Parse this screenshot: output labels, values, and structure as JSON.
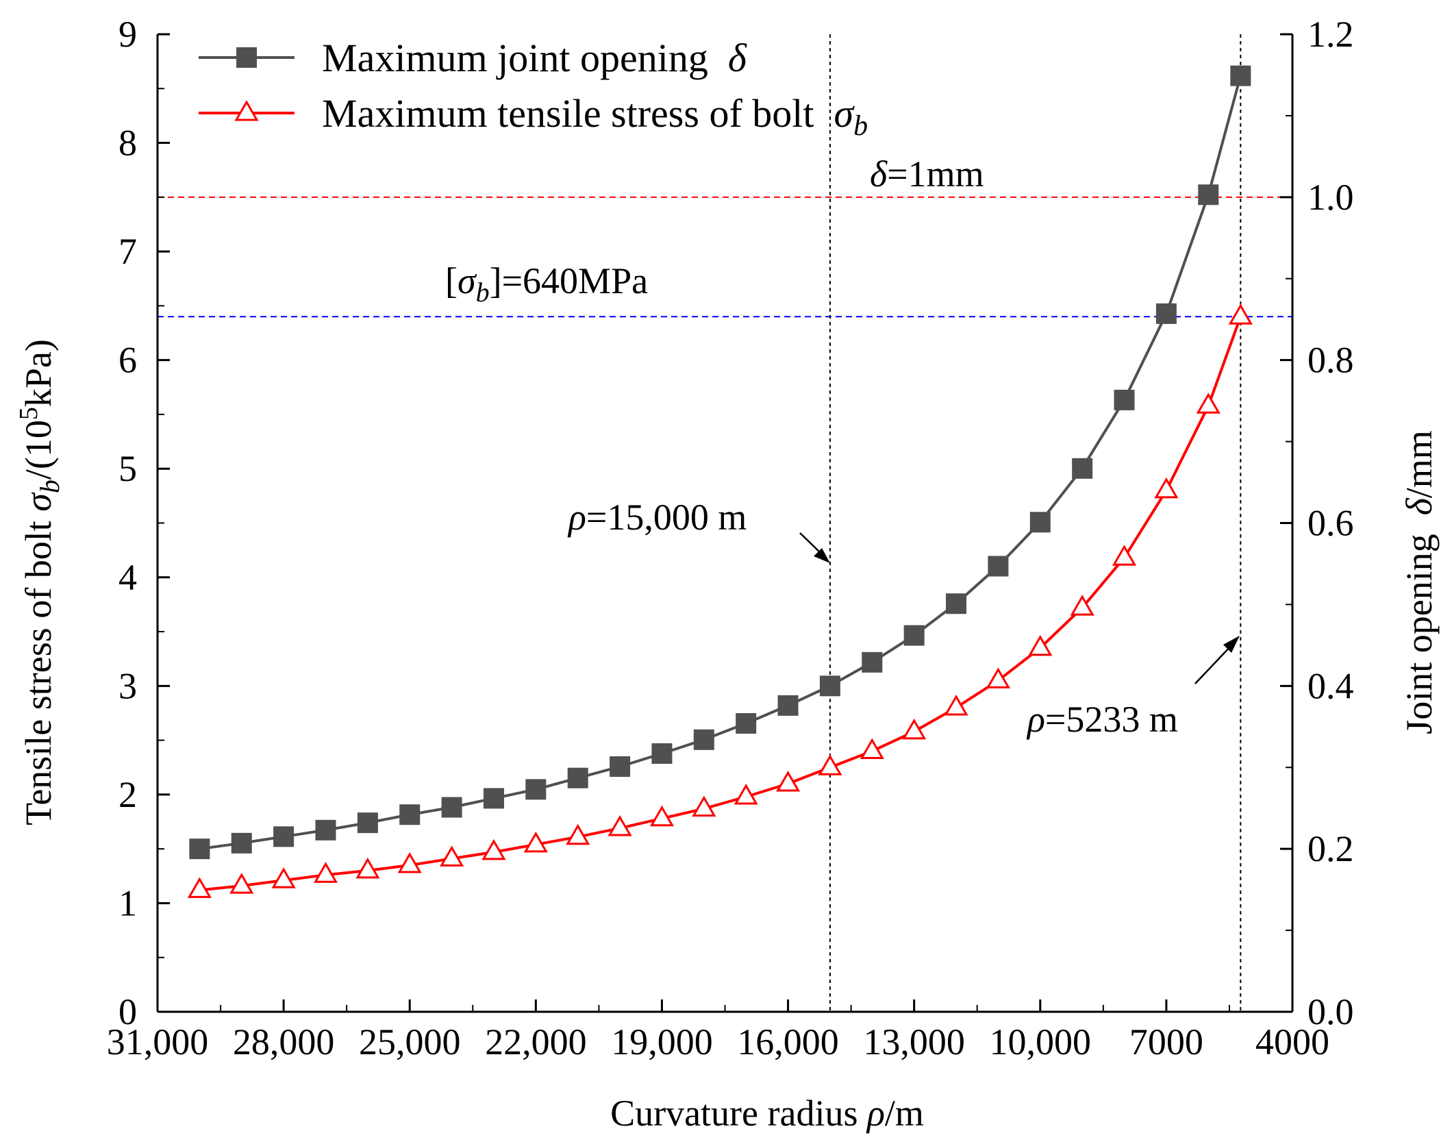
{
  "chart_data": {
    "type": "line",
    "x_axis": {
      "label_prefix": "Curvature radius ",
      "label_symbol": "ρ",
      "label_suffix": "/m",
      "range": [
        31000,
        4000
      ],
      "reversed": true,
      "ticks": [
        31000,
        28000,
        25000,
        22000,
        19000,
        16000,
        13000,
        10000,
        7000,
        4000
      ],
      "tick_labels": [
        "31,000",
        "28,000",
        "25,000",
        "22,000",
        "19,000",
        "16,000",
        "13,000",
        "10,000",
        "7000",
        "4000"
      ]
    },
    "y_left": {
      "label_prefix": "Tensile stress of bolt ",
      "label_symbol": "σ",
      "label_sub": "b",
      "label_mid": "/(10",
      "label_sup": "5",
      "label_suffix": "kPa)",
      "range": [
        0,
        9
      ],
      "ticks": [
        "0",
        "1",
        "2",
        "3",
        "4",
        "5",
        "6",
        "7",
        "8",
        "9"
      ]
    },
    "y_right": {
      "label_prefix": "Joint opening  ",
      "label_symbol": "δ",
      "label_suffix": "/mm",
      "range": [
        0,
        1.2
      ],
      "ticks": [
        "0.0",
        "0.2",
        "0.4",
        "0.6",
        "0.8",
        "1.0",
        "1.2"
      ]
    },
    "x": [
      30000,
      29000,
      28000,
      27000,
      26000,
      25000,
      24000,
      23000,
      22000,
      21000,
      20000,
      19000,
      18000,
      17000,
      16000,
      15000,
      14000,
      13000,
      12000,
      11000,
      10000,
      9000,
      8000,
      7000,
      6000,
      5233
    ],
    "series": [
      {
        "name_text": "Maximum joint opening  ",
        "name_symbol": "δ",
        "name_sub": "",
        "axis": "right",
        "color": "#505050",
        "marker": "square",
        "values": [
          0.2,
          0.207,
          0.215,
          0.223,
          0.232,
          0.242,
          0.251,
          0.262,
          0.273,
          0.287,
          0.301,
          0.317,
          0.334,
          0.354,
          0.376,
          0.4,
          0.429,
          0.462,
          0.501,
          0.547,
          0.601,
          0.667,
          0.751,
          0.857,
          1.003,
          1.149
        ]
      },
      {
        "name_text": "Maximum tensile stress of bolt  ",
        "name_symbol": "σ",
        "name_sub": "b",
        "axis": "left",
        "color": "#ff0000",
        "marker": "triangle-open",
        "values": [
          1.12,
          1.16,
          1.21,
          1.26,
          1.3,
          1.35,
          1.41,
          1.47,
          1.54,
          1.61,
          1.69,
          1.78,
          1.87,
          1.98,
          2.1,
          2.25,
          2.4,
          2.58,
          2.8,
          3.05,
          3.35,
          3.72,
          4.18,
          4.8,
          5.58,
          6.4
        ]
      }
    ],
    "reference_lines": [
      {
        "orientation": "horizontal",
        "axis": "right",
        "value": 1.0,
        "color": "#ff0000",
        "style": "dashed",
        "label_symbol": "δ",
        "label_text": "=1mm"
      },
      {
        "orientation": "horizontal",
        "axis": "left",
        "value": 6.4,
        "color": "#0000ff",
        "style": "dashed",
        "label_open": "[",
        "label_symbol": "σ",
        "label_sub": "b",
        "label_text": "]=640MPa"
      },
      {
        "orientation": "vertical",
        "value": 15000,
        "color": "#000000",
        "style": "dotted",
        "label_symbol": "ρ",
        "label_text": "=15,000 m"
      },
      {
        "orientation": "vertical",
        "value": 5233,
        "color": "#000000",
        "style": "dotted",
        "label_symbol": "ρ",
        "label_text": "=5233 m"
      }
    ],
    "legend_position": "top-left",
    "grid": false
  }
}
